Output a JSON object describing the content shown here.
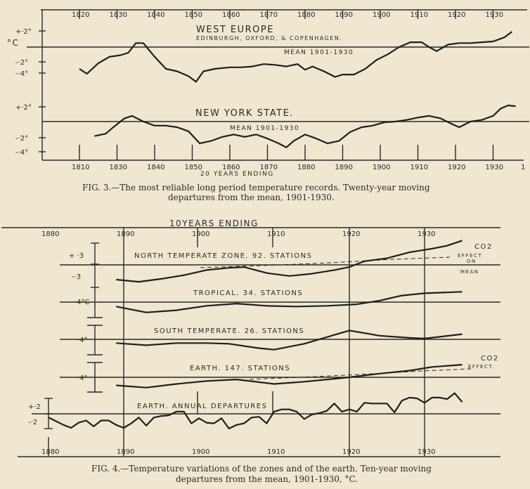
{
  "figure3": {
    "caption_line1": "FIG. 3.—The most reliable long period temperature records. Twenty-year moving",
    "caption_line2": "departures from the mean, 1901-1930.",
    "xlabel": "20 YEARS ENDING",
    "unit": "°C",
    "top_ticks": [
      "1820",
      "1830",
      "1840",
      "1850",
      "1860",
      "1870",
      "1880",
      "1890",
      "1900",
      "1910",
      "1920",
      "1930"
    ],
    "bottom_ticks": [
      "1810",
      "1830",
      "1840",
      "1850",
      "1860",
      "1870",
      "1880",
      "1890",
      "1900",
      "1910",
      "1920",
      "1930"
    ],
    "bottom_end_mark": "1",
    "west_europe": {
      "title": "WEST EUROPE",
      "subtitle": "EDINBURGH, OXFORD, & COPENHAGEN.",
      "mean_label": "MEAN 1901-1930",
      "yticks": [
        "+·2°",
        "-·2°",
        "-·4°"
      ]
    },
    "new_york": {
      "title": "NEW YORK STATE.",
      "mean_label": "MEAN 1901-1930",
      "yticks": [
        "+·2°",
        "-·2°",
        "-·4°"
      ]
    }
  },
  "figure4": {
    "caption_line1": "FIG. 4.—Temperature variations of the zones and of the earth. Ten-year moving",
    "caption_line2": "departures from the mean, 1901-1930, °C.",
    "xlabel": "10YEARS ENDING",
    "top_ticks": [
      "1880",
      "1890",
      "1900",
      "1910",
      "1920",
      "1930"
    ],
    "bottom_ticks": [
      "1880",
      "1890",
      "1900",
      "1910",
      "1920",
      "1930"
    ],
    "ntz": {
      "title": "NORTH TEMPERATE ZONE. 92. STATIONS",
      "yticks": [
        "+ ·3",
        "-·3"
      ],
      "co2": "CO2",
      "effect": "EFFECT",
      "on": "ON",
      "mean": "MEAN"
    },
    "tropical": {
      "title": "TROPICAL. 34. STATIONS",
      "ytick": "·4°C"
    },
    "south": {
      "title": "SOUTH TEMPERATE. 26. STATIONS",
      "ytick": "·4°"
    },
    "earth": {
      "title": "EARTH. 147. STATIONS",
      "ytick": "·4°",
      "co2": "CO2",
      "effect": "EFFECT."
    },
    "annual": {
      "title": "EARTH. ANNUAL DEPARTURES",
      "yticks": [
        "+·2",
        "-·2"
      ]
    }
  },
  "chart_data": [
    {
      "type": "line",
      "title": "",
      "xlabel": "20 YEARS ENDING",
      "ylabel": "°C",
      "xlim": [
        1815,
        1937
      ],
      "grid": false,
      "series": [
        {
          "name": "WEST EUROPE",
          "x": [
            1820,
            1822,
            1825,
            1828,
            1831,
            1833,
            1835,
            1837,
            1840,
            1843,
            1846,
            1849,
            1851,
            1853,
            1856,
            1860,
            1863,
            1866,
            1869,
            1872,
            1875,
            1878,
            1880,
            1882,
            1885,
            1888,
            1890,
            1893,
            1896,
            1899,
            1902,
            1905,
            1908,
            1911,
            1913,
            1915,
            1918,
            1921,
            1924,
            1927,
            1930,
            1933,
            1935
          ],
          "y": [
            -0.27,
            -0.33,
            -0.2,
            -0.12,
            -0.1,
            -0.07,
            0.05,
            0.05,
            -0.12,
            -0.27,
            -0.3,
            -0.36,
            -0.43,
            -0.3,
            -0.27,
            -0.25,
            -0.25,
            -0.24,
            -0.21,
            -0.22,
            -0.24,
            -0.21,
            -0.28,
            -0.24,
            -0.3,
            -0.37,
            -0.34,
            -0.34,
            -0.27,
            -0.16,
            -0.09,
            0,
            0.06,
            0.06,
            0,
            -0.05,
            0.03,
            0.05,
            0.05,
            0.06,
            0.07,
            0.12,
            0.19
          ]
        },
        {
          "name": "NEW YORK STATE.",
          "x": [
            1824,
            1827,
            1829,
            1832,
            1834,
            1837,
            1840,
            1843,
            1846,
            1849,
            1852,
            1855,
            1858,
            1861,
            1864,
            1867,
            1870,
            1873,
            1875,
            1877,
            1880,
            1883,
            1886,
            1889,
            1892,
            1895,
            1898,
            1901,
            1904,
            1907,
            1910,
            1913,
            1916,
            1919,
            1921,
            1924,
            1927,
            1930,
            1932,
            1934,
            1936
          ],
          "y": [
            -0.18,
            -0.15,
            -0.07,
            0.04,
            0.07,
            0,
            -0.05,
            -0.05,
            -0.07,
            -0.12,
            -0.27,
            -0.24,
            -0.19,
            -0.16,
            -0.19,
            -0.16,
            -0.21,
            -0.27,
            -0.32,
            -0.24,
            -0.16,
            -0.21,
            -0.27,
            -0.24,
            -0.13,
            -0.07,
            -0.05,
            -0.01,
            0,
            0.02,
            0.05,
            0.07,
            0.04,
            -0.03,
            -0.07,
            0,
            0.02,
            0.07,
            0.16,
            0.2,
            0.19
          ]
        }
      ]
    },
    {
      "type": "line",
      "title": "",
      "xlabel": "10YEARS ENDING",
      "ylabel": "°C",
      "xlim": [
        1880,
        1936
      ],
      "grid": false,
      "series": [
        {
          "name": "NORTH TEMPERATE ZONE. 92. STATIONS",
          "x": [
            1889,
            1892,
            1895,
            1898,
            1901,
            1904,
            1906,
            1909,
            1912,
            1915,
            1918,
            1920,
            1922,
            1925,
            1928,
            1931,
            1933,
            1935
          ],
          "y": [
            -0.2,
            -0.23,
            -0.19,
            -0.14,
            -0.07,
            -0.04,
            -0.03,
            -0.11,
            -0.15,
            -0.12,
            -0.07,
            -0.03,
            0.05,
            0.09,
            0.17,
            0.22,
            0.26,
            0.33
          ]
        },
        {
          "name": "TROPICAL. 34. STATIONS",
          "x": [
            1889,
            1893,
            1897,
            1901,
            1905,
            1909,
            1913,
            1917,
            1921,
            1924,
            1927,
            1930,
            1935
          ],
          "y": [
            -0.06,
            -0.14,
            -0.11,
            -0.05,
            -0.02,
            -0.05,
            -0.06,
            -0.05,
            -0.03,
            0.02,
            0.09,
            0.12,
            0.14
          ]
        },
        {
          "name": "SOUTH TEMPERATE. 26. STATIONS",
          "x": [
            1889,
            1893,
            1897,
            1901,
            1904,
            1908,
            1910,
            1914,
            1918,
            1920,
            1924,
            1928,
            1930,
            1935
          ],
          "y": [
            -0.05,
            -0.08,
            -0.05,
            -0.05,
            -0.06,
            -0.12,
            -0.14,
            -0.06,
            0.06,
            0.12,
            0.05,
            0.02,
            0.01,
            0.07
          ]
        },
        {
          "name": "EARTH. 147. STATIONS",
          "x": [
            1889,
            1893,
            1897,
            1901,
            1905,
            1910,
            1914,
            1918,
            1920,
            1924,
            1928,
            1931,
            1935
          ],
          "y": [
            -0.11,
            -0.14,
            -0.09,
            -0.05,
            -0.03,
            -0.09,
            -0.06,
            -0.02,
            0,
            0.05,
            0.09,
            0.14,
            0.17
          ]
        },
        {
          "name": "EARTH. ANNUAL DEPARTURES",
          "x": [
            1880,
            1881,
            1882,
            1883,
            1884,
            1885,
            1886,
            1887,
            1888,
            1889,
            1890,
            1891,
            1892,
            1893,
            1894,
            1895,
            1896,
            1897,
            1898,
            1899,
            1900,
            1901,
            1902,
            1903,
            1904,
            1905,
            1906,
            1907,
            1908,
            1909,
            1910,
            1911,
            1912,
            1913,
            1914,
            1915,
            1916,
            1917,
            1918,
            1919,
            1920,
            1921,
            1922,
            1923,
            1924,
            1925,
            1926,
            1927,
            1928,
            1929,
            1930,
            1931,
            1932,
            1933,
            1934,
            1935
          ],
          "y": [
            -0.05,
            -0.1,
            -0.15,
            -0.19,
            -0.12,
            -0.09,
            -0.17,
            -0.09,
            -0.09,
            -0.15,
            -0.19,
            -0.13,
            -0.05,
            -0.16,
            -0.05,
            -0.03,
            -0.02,
            0.03,
            0.03,
            -0.13,
            -0.06,
            -0.12,
            -0.13,
            -0.06,
            -0.2,
            -0.15,
            -0.13,
            -0.05,
            -0.04,
            -0.13,
            0.03,
            0.06,
            0.06,
            0.03,
            -0.07,
            -0.01,
            0.01,
            0.04,
            0.14,
            0.03,
            0.06,
            0.03,
            0.15,
            0.14,
            0.14,
            0.14,
            0.02,
            0.18,
            0.22,
            0.21,
            0.15,
            0.22,
            0.22,
            0.2,
            0.28,
            0.16
          ]
        }
      ],
      "annotations": [
        "CO2 EFFECT ON MEAN",
        "CO2 EFFECT."
      ]
    }
  ],
  "colors": {
    "paper": "#efe7cf",
    "ink": "#2a2a2a"
  }
}
